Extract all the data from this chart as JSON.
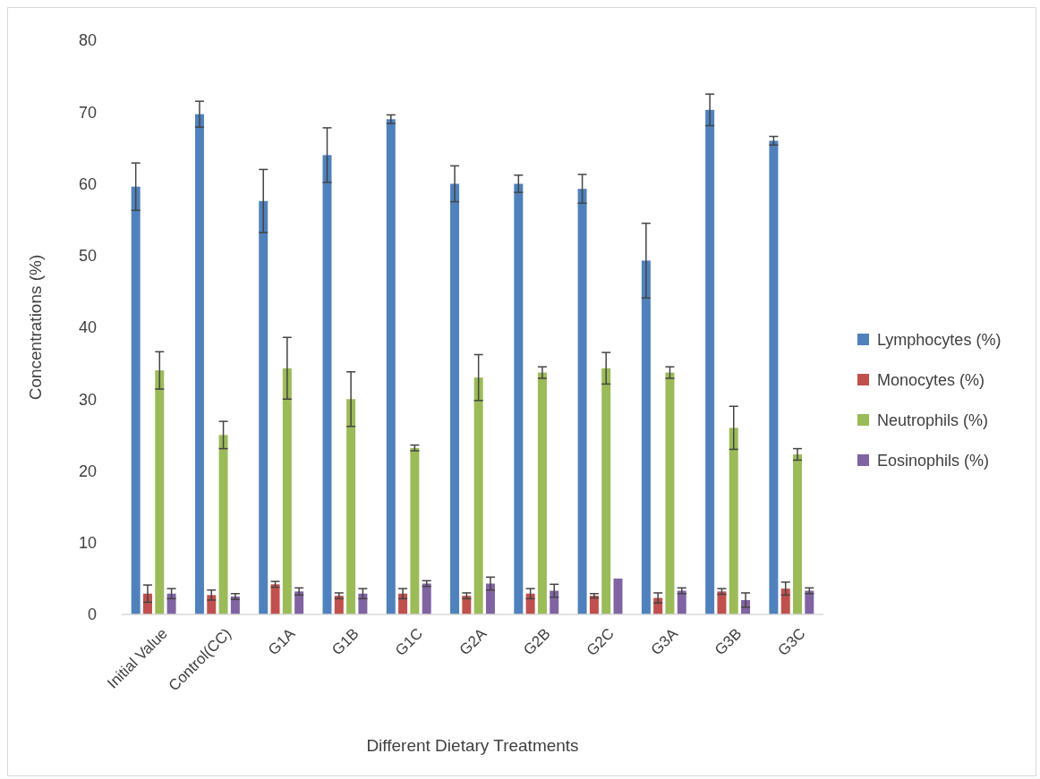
{
  "chart_data": {
    "type": "bar",
    "xlabel": "Different Dietary Treatments",
    "ylabel": "Concentrations (%)",
    "categories": [
      "Initial Value",
      "Control(CC)",
      "G1A",
      "G1B",
      "G1C",
      "G2A",
      "G2B",
      "G2C",
      "G3A",
      "G3B",
      "G3C"
    ],
    "ylim": [
      0,
      80
    ],
    "yticks": [
      0,
      10,
      20,
      30,
      40,
      50,
      60,
      70,
      80
    ],
    "grid": false,
    "legend": "right",
    "series": [
      {
        "name": "Lymphocytes (%)",
        "color": "#4f81bd",
        "values": [
          59.6,
          69.7,
          57.6,
          64,
          69,
          60,
          60,
          59.3,
          49.3,
          70.3,
          66
        ],
        "errors": [
          3.3,
          1.8,
          4.4,
          3.8,
          0.6,
          2.5,
          1.2,
          2,
          5.2,
          2.2,
          0.6
        ]
      },
      {
        "name": "Monocytes (%)",
        "color": "#c0504d",
        "values": [
          2.9,
          2.7,
          4.2,
          2.6,
          2.9,
          2.6,
          2.9,
          2.6,
          2.3,
          3.2,
          3.6
        ],
        "errors": [
          1.2,
          0.7,
          0.4,
          0.4,
          0.7,
          0.4,
          0.7,
          0.3,
          0.7,
          0.4,
          0.9
        ]
      },
      {
        "name": "Neutrophils (%)",
        "color": "#9bbb59",
        "values": [
          34,
          25,
          34.3,
          30,
          23.2,
          33,
          33.7,
          34.3,
          33.7,
          26,
          22.3
        ],
        "errors": [
          2.6,
          1.9,
          4.3,
          3.8,
          0.4,
          3.2,
          0.8,
          2.2,
          0.8,
          3,
          0.8
        ]
      },
      {
        "name": "Eosinophils (%)",
        "color": "#8064a2",
        "values": [
          2.9,
          2.5,
          3.2,
          2.9,
          4.3,
          4.3,
          3.3,
          5,
          3.3,
          2,
          3.3
        ],
        "errors": [
          0.7,
          0.4,
          0.5,
          0.7,
          0.4,
          0.9,
          0.9,
          null,
          0.4,
          1,
          0.4
        ]
      }
    ]
  }
}
